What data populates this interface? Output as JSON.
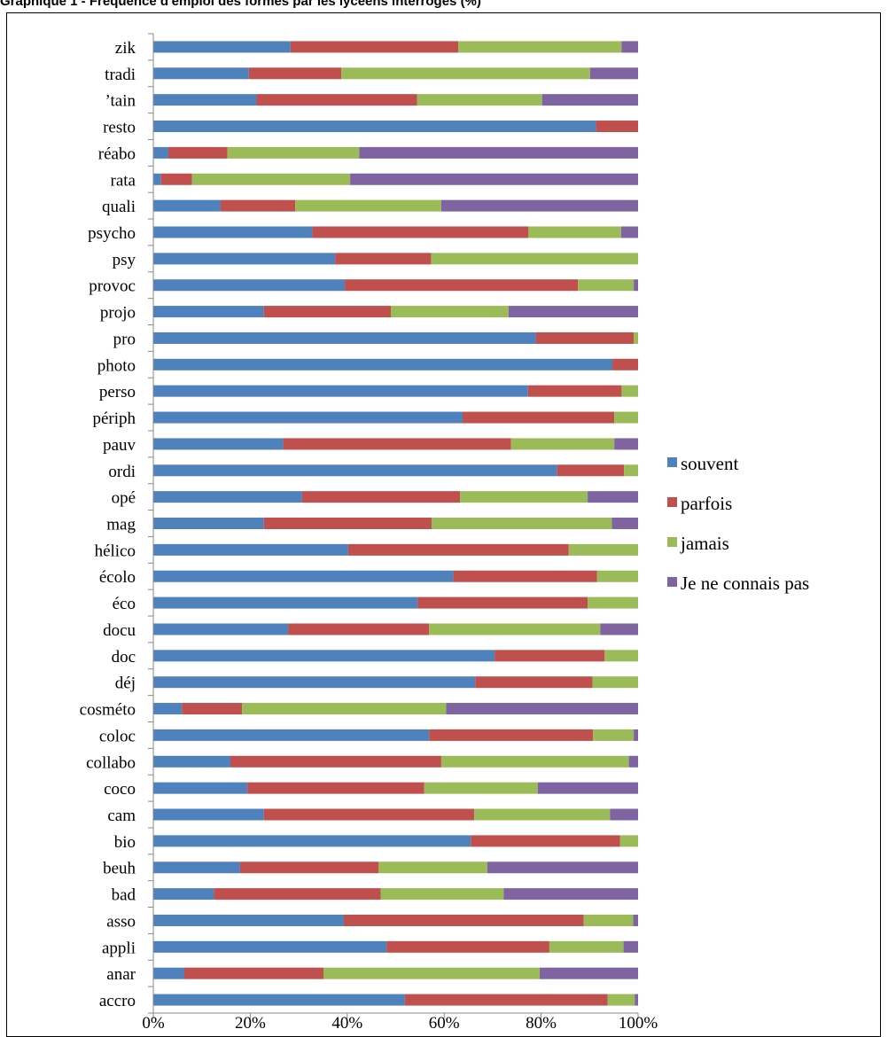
{
  "chart_data": {
    "type": "bar",
    "orientation": "horizontal",
    "stacked": "percent",
    "title": "Graphique 1 - Fréquence d'emploi des formes par les lycéens interrogés (%)",
    "xlabel": "",
    "ylabel": "",
    "xlim": [
      0,
      100
    ],
    "x_tick_labels": [
      "0%",
      "20%",
      "40%",
      "60%",
      "80%",
      "100%"
    ],
    "legend_position": "right",
    "grid": false,
    "categories": [
      "zik",
      "tradi",
      "’tain",
      "resto",
      "réabo",
      "rata",
      "quali",
      "psycho",
      "psy",
      "provoc",
      "projo",
      "pro",
      "photo",
      "perso",
      "périph",
      "pauv",
      "ordi",
      "opé",
      "mag",
      "hélico",
      "écolo",
      "éco",
      "docu",
      "doc",
      "déj",
      "cosméto",
      "coloc",
      "collabo",
      "coco",
      "cam",
      "bio",
      "beuh",
      "bad",
      "asso",
      "appli",
      "anar",
      "accro"
    ],
    "series": [
      {
        "name": "souvent",
        "color": "#4F81BD",
        "values": [
          28.3,
          19.7,
          21.3,
          91.3,
          3.1,
          1.6,
          13.9,
          32.8,
          37.5,
          39.5,
          22.8,
          78.9,
          94.7,
          77.3,
          63.8,
          26.8,
          83.3,
          30.7,
          22.8,
          40.2,
          61.9,
          54.5,
          27.8,
          70.4,
          66.4,
          5.9,
          56.9,
          15.9,
          19.4,
          22.8,
          65.5,
          17.9,
          12.5,
          39.3,
          48.1,
          6.4,
          51.9
        ]
      },
      {
        "name": "parfois",
        "color": "#C0504D",
        "values": [
          34.6,
          19.1,
          33.1,
          8.7,
          12.2,
          6.4,
          15.4,
          44.6,
          19.8,
          48.1,
          26.2,
          20.2,
          5.3,
          19.3,
          31.3,
          47.0,
          13.8,
          32.6,
          34.6,
          45.5,
          29.6,
          35.1,
          29.1,
          22.7,
          24.2,
          12.4,
          33.8,
          43.5,
          36.5,
          43.4,
          30.8,
          28.6,
          34.4,
          49.5,
          33.6,
          28.7,
          41.8
        ]
      },
      {
        "name": "jamais",
        "color": "#9BBB59",
        "values": [
          33.7,
          51.3,
          25.8,
          0,
          27.2,
          32.6,
          30.1,
          19.1,
          42.7,
          11.5,
          24.3,
          0.9,
          0,
          3.4,
          4.9,
          21.3,
          2.9,
          26.3,
          37.2,
          14.3,
          8.5,
          10.4,
          35.3,
          6.9,
          9.4,
          42.1,
          8.4,
          38.7,
          23.4,
          28.0,
          3.7,
          22.4,
          25.4,
          10.2,
          15.3,
          44.6,
          5.6
        ]
      },
      {
        "name": "Je ne connais pas",
        "color": "#8064A2",
        "values": [
          3.4,
          9.9,
          19.8,
          0,
          57.5,
          59.4,
          40.6,
          3.5,
          0,
          0.9,
          26.7,
          0,
          0,
          0,
          0,
          4.9,
          0,
          10.4,
          5.4,
          0,
          0,
          0,
          7.8,
          0,
          0,
          39.6,
          0.9,
          1.9,
          20.7,
          5.8,
          0,
          31.1,
          27.7,
          1.0,
          3.0,
          20.3,
          0.7
        ]
      }
    ]
  }
}
